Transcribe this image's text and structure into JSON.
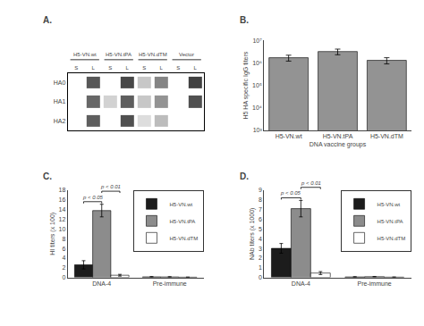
{
  "chart_data": [
    {
      "type": "heatmap",
      "title": "A.",
      "categories": [
        "S",
        "L",
        "S",
        "L",
        "S",
        "L",
        "S",
        "L"
      ],
      "groups": [
        "H5-VN.wt",
        "H5-VN.tPA",
        "H5-VN.dTM",
        "Vector"
      ],
      "rows": [
        "HA0",
        "HA1",
        "HA2"
      ],
      "cells": [
        [
          0.0,
          0.75,
          0.0,
          0.82,
          0.25,
          0.55,
          0.0,
          0.85
        ],
        [
          0.0,
          0.68,
          0.2,
          0.72,
          0.25,
          0.48,
          0.0,
          0.78
        ],
        [
          0.0,
          0.72,
          0.0,
          0.78,
          0.15,
          0.3,
          0.0,
          0.0
        ]
      ],
      "zlim": [
        0,
        1
      ],
      "grid": false
    },
    {
      "type": "bar",
      "title": "B.",
      "categories": [
        "H5-VN.wt",
        "H5-VN.tPA",
        "H5-VN.dTM"
      ],
      "values": [
        1700000,
        3200000,
        1300000
      ],
      "errors": [
        500000,
        900000,
        400000
      ],
      "color": "#939393",
      "xlabel": "DNA vaccine groups",
      "ylabel": "H5 HA specific IgG titers",
      "log": "y",
      "ylim": [
        1000,
        10000000
      ],
      "yticks": [
        {
          "value": 1000,
          "label": "10³"
        },
        {
          "value": 10000,
          "label": "10⁴"
        },
        {
          "value": 100000,
          "label": "10⁵"
        },
        {
          "value": 1000000,
          "label": "10⁶"
        },
        {
          "value": 10000000,
          "label": "10⁷"
        }
      ],
      "grid": false
    },
    {
      "type": "bar",
      "title": "C.",
      "categories": [
        "DNA-4",
        "Pre-immune"
      ],
      "series": [
        {
          "name": "H5-VN.wt",
          "color": "#1c1c1c",
          "values": [
            2.6,
            0.12
          ],
          "errors": [
            0.85,
            0.05
          ]
        },
        {
          "name": "H5-VN.tPA",
          "color": "#8c8c8c",
          "values": [
            13.8,
            0.1
          ],
          "errors": [
            1.3,
            0.05
          ]
        },
        {
          "name": "H5-VN.dTM",
          "color": "#ffffff",
          "values": [
            0.45,
            0.05
          ],
          "errors": [
            0.18,
            0.02
          ]
        }
      ],
      "ylabel": "HI titers (x 100)",
      "ylim": [
        0,
        18
      ],
      "yticks": [
        0,
        2,
        4,
        6,
        8,
        10,
        12,
        14,
        16,
        18
      ],
      "legend": "upper right",
      "grid": false,
      "annotations": [
        {
          "text": "p < 0.05",
          "category": "DNA-4",
          "between": [
            "H5-VN.wt",
            "H5-VN.tPA"
          ]
        },
        {
          "text": "p < 0.01",
          "category": "DNA-4",
          "between": [
            "H5-VN.tPA",
            "H5-VN.dTM"
          ]
        }
      ]
    },
    {
      "type": "bar",
      "title": "D.",
      "categories": [
        "DNA-4",
        "Pre-immune"
      ],
      "series": [
        {
          "name": "H5-VN.wt",
          "color": "#1c1c1c",
          "values": [
            3.0,
            0.05
          ],
          "errors": [
            0.5,
            0.02
          ]
        },
        {
          "name": "H5-VN.tPA",
          "color": "#8c8c8c",
          "values": [
            7.1,
            0.07
          ],
          "errors": [
            0.85,
            0.02
          ]
        },
        {
          "name": "H5-VN.dTM",
          "color": "#ffffff",
          "values": [
            0.45,
            0.03
          ],
          "errors": [
            0.15,
            0.01
          ]
        }
      ],
      "ylabel": "NAb titers (x 1000)",
      "ylim": [
        0,
        9
      ],
      "yticks": [
        0,
        1,
        2,
        3,
        4,
        5,
        6,
        7,
        8,
        9
      ],
      "legend": "upper right",
      "grid": false,
      "annotations": [
        {
          "text": "p < 0.05",
          "category": "DNA-4",
          "between": [
            "H5-VN.wt",
            "H5-VN.tPA"
          ]
        },
        {
          "text": "p < 0.01",
          "category": "DNA-4",
          "between": [
            "H5-VN.tPA",
            "H5-VN.dTM"
          ]
        }
      ]
    }
  ]
}
